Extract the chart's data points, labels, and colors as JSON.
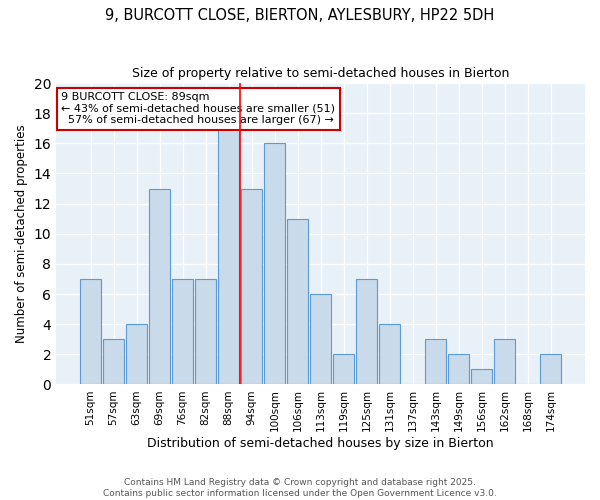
{
  "title1": "9, BURCOTT CLOSE, BIERTON, AYLESBURY, HP22 5DH",
  "title2": "Size of property relative to semi-detached houses in Bierton",
  "xlabel": "Distribution of semi-detached houses by size in Bierton",
  "ylabel": "Number of semi-detached properties",
  "categories": [
    "51sqm",
    "57sqm",
    "63sqm",
    "69sqm",
    "76sqm",
    "82sqm",
    "88sqm",
    "94sqm",
    "100sqm",
    "106sqm",
    "113sqm",
    "119sqm",
    "125sqm",
    "131sqm",
    "137sqm",
    "143sqm",
    "149sqm",
    "156sqm",
    "162sqm",
    "168sqm",
    "174sqm"
  ],
  "values": [
    7,
    3,
    4,
    13,
    7,
    7,
    17,
    13,
    16,
    11,
    6,
    2,
    7,
    4,
    0,
    3,
    2,
    1,
    3,
    0,
    2
  ],
  "bar_color": "#c9daea",
  "bar_edge_color": "#5b9bd5",
  "property_bin_index": 6,
  "annotation_line1": "9 BURCOTT CLOSE: 89sqm",
  "annotation_line2": "← 43% of semi-detached houses are smaller (51)",
  "annotation_line3": "  57% of semi-detached houses are larger (67) →",
  "annotation_box_color": "#ffffff",
  "annotation_box_edge_color": "#cc0000",
  "footer": "Contains HM Land Registry data © Crown copyright and database right 2025.\nContains public sector information licensed under the Open Government Licence v3.0.",
  "ylim": [
    0,
    20
  ],
  "yticks": [
    0,
    2,
    4,
    6,
    8,
    10,
    12,
    14,
    16,
    18,
    20
  ],
  "plot_bg_color": "#e8f0f8",
  "grid_color": "#ffffff",
  "title1_fontsize": 10.5,
  "title2_fontsize": 9,
  "ylabel_fontsize": 8.5,
  "xlabel_fontsize": 9,
  "tick_fontsize": 7.5,
  "footer_fontsize": 6.5
}
